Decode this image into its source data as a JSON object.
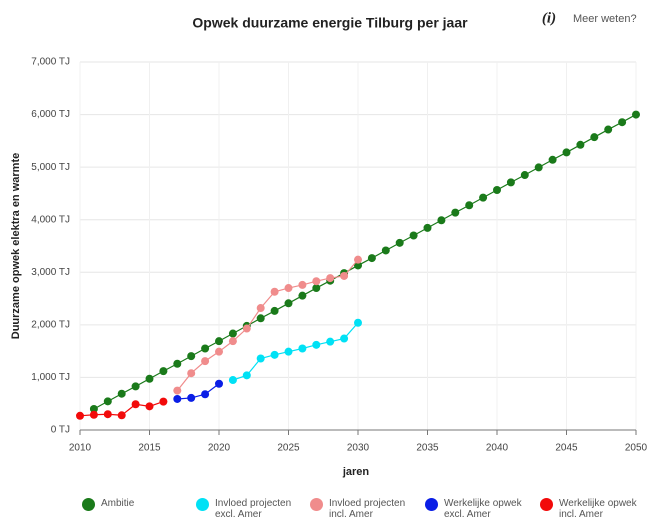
{
  "header": {
    "info_icon": "(i)",
    "link_label": "Meer weten?"
  },
  "chart_data": {
    "type": "line",
    "title": "Opwek duurzame energie Tilburg per jaar",
    "xlabel": "jaren",
    "ylabel": "Duurzame opwek elektra en warmte",
    "x": [
      2010,
      2011,
      2012,
      2013,
      2014,
      2015,
      2016,
      2017,
      2018,
      2019,
      2020,
      2021,
      2022,
      2023,
      2024,
      2025,
      2026,
      2027,
      2028,
      2029,
      2030,
      2031,
      2032,
      2033,
      2034,
      2035,
      2036,
      2037,
      2038,
      2039,
      2040,
      2041,
      2042,
      2043,
      2044,
      2045,
      2046,
      2047,
      2048,
      2049,
      2050
    ],
    "xlim": [
      2010,
      2050
    ],
    "xticks": [
      2010,
      2015,
      2020,
      2025,
      2030,
      2035,
      2040,
      2045,
      2050
    ],
    "ylim": [
      0,
      7000
    ],
    "yticks": [
      {
        "value": 0,
        "label": "0 TJ"
      },
      {
        "value": 1000,
        "label": "1,000 TJ"
      },
      {
        "value": 2000,
        "label": "2,000 TJ"
      },
      {
        "value": 3000,
        "label": "3,000 TJ"
      },
      {
        "value": 4000,
        "label": "4,000 TJ"
      },
      {
        "value": 5000,
        "label": "5,000 TJ"
      },
      {
        "value": 6000,
        "label": "6,000 TJ"
      },
      {
        "value": 7000,
        "label": "7,000 TJ"
      }
    ],
    "grid": true,
    "series": [
      {
        "name": "Ambitie",
        "color": "#1a7a1a",
        "values": [
          null,
          400,
          545,
          690,
          830,
          975,
          1120,
          1260,
          1405,
          1550,
          1690,
          1835,
          1980,
          2125,
          2265,
          2410,
          2555,
          2700,
          2840,
          2985,
          3130,
          3270,
          3415,
          3560,
          3700,
          3845,
          3990,
          4135,
          4275,
          4420,
          4565,
          4710,
          4850,
          4995,
          5140,
          5280,
          5425,
          5570,
          5715,
          5855,
          6000
        ]
      },
      {
        "name": "Invloed projecten excl. Amer",
        "color": "#00e1f5",
        "values": [
          null,
          null,
          null,
          null,
          null,
          null,
          null,
          null,
          null,
          null,
          null,
          950,
          1040,
          1360,
          1430,
          1490,
          1550,
          1620,
          1680,
          1740,
          2040,
          null,
          null,
          null,
          null,
          null,
          null,
          null,
          null,
          null,
          null,
          null,
          null,
          null,
          null,
          null,
          null,
          null,
          null,
          null,
          null
        ]
      },
      {
        "name": "Invloed projecten incl. Amer",
        "color": "#f08c8c",
        "values": [
          null,
          null,
          null,
          null,
          null,
          null,
          null,
          750,
          1080,
          1310,
          1490,
          1690,
          1930,
          2320,
          2630,
          2700,
          2760,
          2830,
          2890,
          2930,
          3240,
          null,
          null,
          null,
          null,
          null,
          null,
          null,
          null,
          null,
          null,
          null,
          null,
          null,
          null,
          null,
          null,
          null,
          null,
          null,
          null
        ]
      },
      {
        "name": "Werkelijke opwek excl. Amer",
        "color": "#0a1ee6",
        "values": [
          null,
          null,
          null,
          null,
          null,
          null,
          null,
          590,
          610,
          680,
          880,
          null,
          null,
          null,
          null,
          null,
          null,
          null,
          null,
          null,
          null,
          null,
          null,
          null,
          null,
          null,
          null,
          null,
          null,
          null,
          null,
          null,
          null,
          null,
          null,
          null,
          null,
          null,
          null,
          null,
          null
        ]
      },
      {
        "name": "Werkelijke opwek incl. Amer",
        "color": "#f20a0a",
        "values": [
          270,
          290,
          300,
          280,
          490,
          450,
          540,
          null,
          null,
          null,
          null,
          null,
          null,
          null,
          null,
          null,
          null,
          null,
          null,
          null,
          null,
          null,
          null,
          null,
          null,
          null,
          null,
          null,
          null,
          null,
          null,
          null,
          null,
          null,
          null,
          null,
          null,
          null,
          null,
          null,
          null
        ]
      }
    ]
  }
}
